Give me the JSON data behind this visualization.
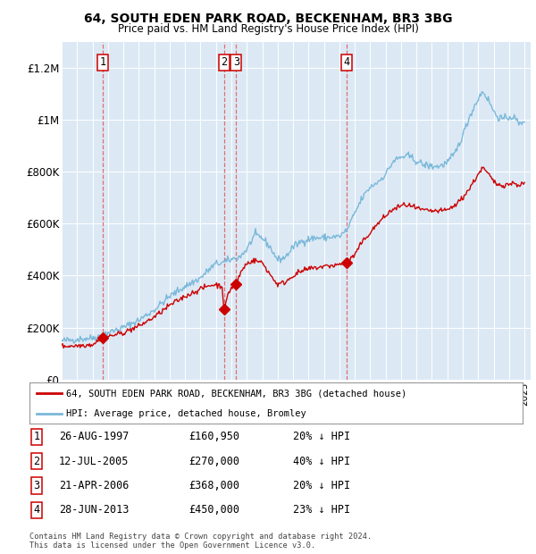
{
  "title": "64, SOUTH EDEN PARK ROAD, BECKENHAM, BR3 3BG",
  "subtitle": "Price paid vs. HM Land Registry's House Price Index (HPI)",
  "plot_bg_color": "#dce9f5",
  "ylim": [
    0,
    1300000
  ],
  "yticks": [
    0,
    200000,
    400000,
    600000,
    800000,
    1000000,
    1200000
  ],
  "ytick_labels": [
    "£0",
    "£200K",
    "£400K",
    "£600K",
    "£800K",
    "£1M",
    "£1.2M"
  ],
  "xstart": 1995,
  "xend": 2025,
  "sale_dates": [
    1997.65,
    2005.53,
    2006.31,
    2013.49
  ],
  "sale_prices": [
    160950,
    270000,
    368000,
    450000
  ],
  "sale_labels": [
    "1",
    "2",
    "3",
    "4"
  ],
  "legend_label_red": "64, SOUTH EDEN PARK ROAD, BECKENHAM, BR3 3BG (detached house)",
  "legend_label_blue": "HPI: Average price, detached house, Bromley",
  "footer1": "Contains HM Land Registry data © Crown copyright and database right 2024.",
  "footer2": "This data is licensed under the Open Government Licence v3.0.",
  "table_rows": [
    {
      "num": "1",
      "date": "26-AUG-1997",
      "price": "£160,950",
      "note": "20% ↓ HPI"
    },
    {
      "num": "2",
      "date": "12-JUL-2005",
      "price": "£270,000",
      "note": "40% ↓ HPI"
    },
    {
      "num": "3",
      "date": "21-APR-2006",
      "price": "£368,000",
      "note": "20% ↓ HPI"
    },
    {
      "num": "4",
      "date": "28-JUN-2013",
      "price": "£450,000",
      "note": "23% ↓ HPI"
    }
  ],
  "red_color": "#cc0000",
  "blue_color": "#7ab8d9",
  "vline_color": "#e06060"
}
